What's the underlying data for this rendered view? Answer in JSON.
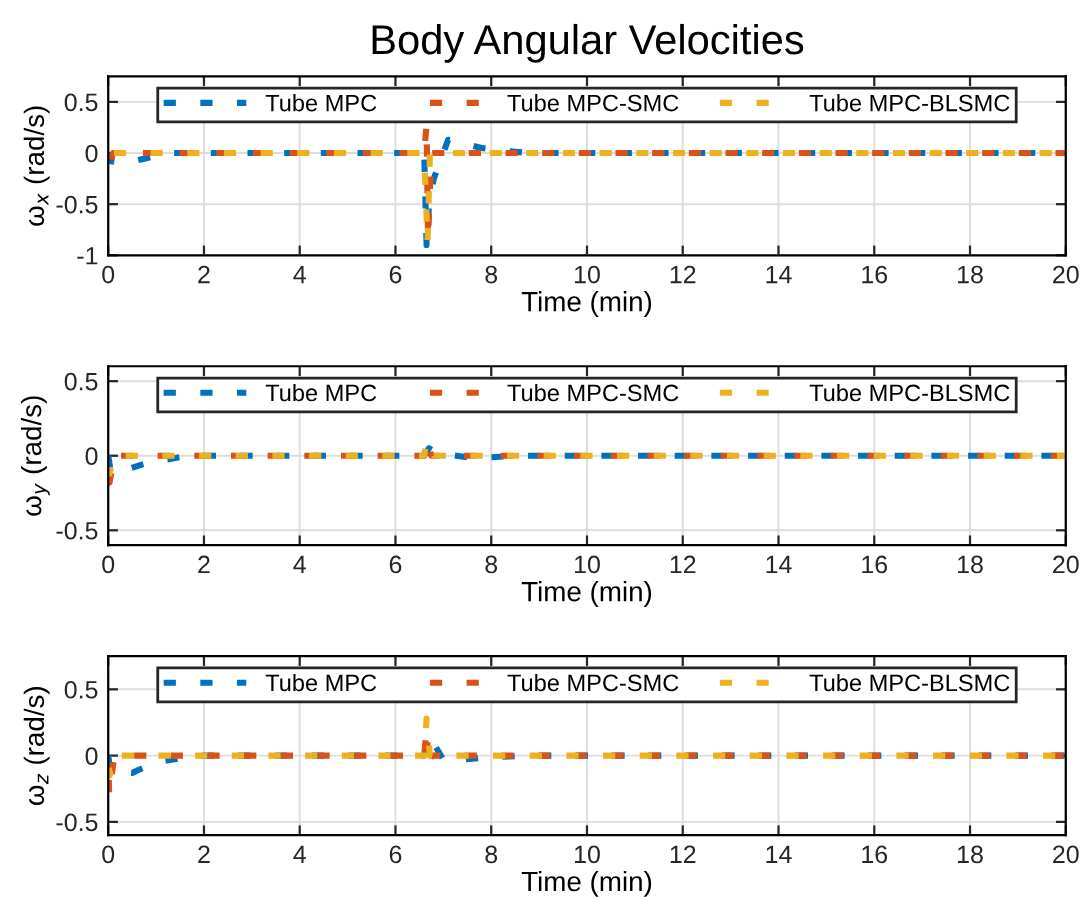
{
  "chart_data": [
    {
      "type": "line",
      "title": "Body Angular Velocities",
      "xlabel": "Time (min)",
      "ylabel": "ω$_{x}$ (rad/s)",
      "xlim": [
        0,
        20
      ],
      "xticks": [
        0,
        2,
        4,
        6,
        8,
        10,
        12,
        14,
        16,
        18,
        20
      ],
      "ylim": [
        -1,
        0.75
      ],
      "yticks": [
        -1,
        -0.5,
        0,
        0.5
      ],
      "grid": true,
      "legend": "top",
      "line_style": "dashed",
      "series": [
        {
          "name": "Tube MPC",
          "color": "#0072bd",
          "x": [
            0,
            0.05,
            0.3,
            0.8,
            1.3,
            2,
            6.6,
            6.65,
            6.7,
            6.8,
            7.1,
            7.8,
            8.3,
            8.8,
            20
          ],
          "values": [
            0,
            -0.08,
            -0.1,
            -0.05,
            0,
            0,
            0,
            -0.9,
            -0.5,
            -0.25,
            0.13,
            0.05,
            0.02,
            0,
            0
          ]
        },
        {
          "name": "Tube MPC-SMC",
          "color": "#d95319",
          "x": [
            0,
            0.02,
            0.1,
            6.6,
            6.65,
            6.68,
            6.75,
            20
          ],
          "values": [
            0,
            -0.15,
            0,
            0,
            0.28,
            -0.85,
            0,
            0
          ]
        },
        {
          "name": "Tube MPC-BLSMC",
          "color": "#edb120",
          "x": [
            0,
            0.05,
            0.1,
            6.6,
            6.67,
            6.72,
            20
          ],
          "values": [
            0,
            -0.05,
            0,
            0,
            -0.88,
            0,
            0
          ]
        }
      ]
    },
    {
      "type": "line",
      "xlabel": "Time (min)",
      "ylabel": "ω$_{y}$ (rad/s)",
      "xlim": [
        0,
        20
      ],
      "xticks": [
        0,
        2,
        4,
        6,
        8,
        10,
        12,
        14,
        16,
        18,
        20
      ],
      "ylim": [
        -0.6,
        0.6
      ],
      "yticks": [
        -0.5,
        0,
        0.5
      ],
      "grid": true,
      "legend": "top",
      "line_style": "dashed",
      "series": [
        {
          "name": "Tube MPC",
          "color": "#0072bd",
          "x": [
            0,
            0.05,
            0.3,
            0.8,
            1.5,
            2,
            6.6,
            6.7,
            6.85,
            7.5,
            8,
            8.5,
            20
          ],
          "values": [
            0,
            -0.1,
            -0.1,
            -0.05,
            -0.01,
            0,
            0,
            0.05,
            0.02,
            -0.01,
            -0.01,
            0,
            0
          ]
        },
        {
          "name": "Tube MPC-SMC",
          "color": "#d95319",
          "x": [
            0,
            0.03,
            0.12,
            6.6,
            6.65,
            6.75,
            20
          ],
          "values": [
            0,
            -0.18,
            0,
            0,
            0.1,
            0,
            0
          ]
        },
        {
          "name": "Tube MPC-BLSMC",
          "color": "#edb120",
          "x": [
            0,
            0.03,
            0.1,
            6.6,
            6.65,
            6.8,
            20
          ],
          "values": [
            0,
            -0.12,
            0,
            0,
            0.1,
            0,
            0
          ]
        }
      ]
    },
    {
      "type": "line",
      "xlabel": "Time (min)",
      "ylabel": "ω$_{z}$ (rad/s)",
      "xlim": [
        0,
        20
      ],
      "xticks": [
        0,
        2,
        4,
        6,
        8,
        10,
        12,
        14,
        16,
        18,
        20
      ],
      "ylim": [
        -0.6,
        0.75
      ],
      "yticks": [
        -0.5,
        0,
        0.5
      ],
      "grid": true,
      "legend": "top",
      "line_style": "dashed",
      "series": [
        {
          "name": "Tube MPC",
          "color": "#0072bd",
          "x": [
            0,
            0.05,
            0.5,
            1,
            1.5,
            2,
            6.6,
            6.7,
            7,
            7.4,
            8,
            9,
            20
          ],
          "values": [
            0,
            -0.12,
            -0.13,
            -0.05,
            -0.02,
            0,
            0,
            0.15,
            -0.03,
            -0.03,
            -0.01,
            0,
            0
          ]
        },
        {
          "name": "Tube MPC-SMC",
          "color": "#d95319",
          "x": [
            0,
            0.02,
            0.12,
            0.3,
            6.6,
            6.65,
            6.7,
            6.75,
            20
          ],
          "values": [
            0,
            -0.3,
            -0.02,
            0,
            0,
            0.2,
            -0.1,
            0,
            0
          ]
        },
        {
          "name": "Tube MPC-BLSMC",
          "color": "#edb120",
          "x": [
            0,
            0.03,
            0.1,
            6.6,
            6.65,
            6.72,
            20
          ],
          "values": [
            0,
            -0.15,
            0,
            0,
            0.28,
            0,
            0
          ]
        }
      ]
    }
  ]
}
